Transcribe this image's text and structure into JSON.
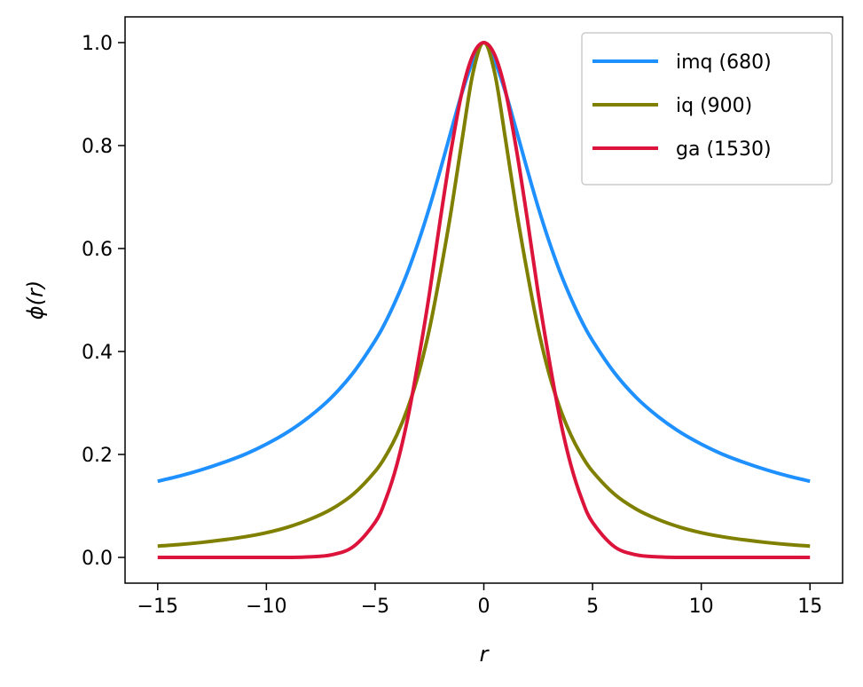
{
  "chart_data": {
    "type": "line",
    "xlabel": "r",
    "ylabel": "ϕ(r)",
    "xlim": [
      -16.5,
      16.5
    ],
    "ylim": [
      -0.05,
      1.05
    ],
    "xticks": [
      -15,
      -10,
      -5,
      0,
      5,
      10,
      15
    ],
    "xtick_labels": [
      "−15",
      "−10",
      "−5",
      "0",
      "5",
      "10",
      "15"
    ],
    "yticks": [
      0.0,
      0.2,
      0.4,
      0.6,
      0.8,
      1.0
    ],
    "ytick_labels": [
      "0.0",
      "0.2",
      "0.4",
      "0.6",
      "0.8",
      "1.0"
    ],
    "legend_position": "top-right",
    "x_samples": [
      -15,
      -14,
      -13,
      -12,
      -11,
      -10,
      -9,
      -8,
      -7,
      -6,
      -5,
      -4.5,
      -4,
      -3.5,
      -3,
      -2.5,
      -2,
      -1.5,
      -1,
      -0.5,
      0,
      0.5,
      1,
      1.5,
      2,
      2.5,
      3,
      3.5,
      4,
      4.5,
      5,
      6,
      7,
      8,
      9,
      10,
      11,
      12,
      13,
      14,
      15
    ],
    "series": [
      {
        "name": "imq (680)",
        "color": "#1e90ff",
        "values": [
          0.148,
          0.158,
          0.17,
          0.184,
          0.2,
          0.22,
          0.244,
          0.274,
          0.311,
          0.359,
          0.421,
          0.459,
          0.504,
          0.555,
          0.614,
          0.68,
          0.753,
          0.829,
          0.903,
          0.964,
          1.0,
          0.964,
          0.903,
          0.829,
          0.753,
          0.68,
          0.614,
          0.555,
          0.504,
          0.459,
          0.421,
          0.359,
          0.311,
          0.274,
          0.244,
          0.22,
          0.2,
          0.184,
          0.17,
          0.158,
          0.148
        ]
      },
      {
        "name": "iq (900)",
        "color": "#808000",
        "values": [
          0.022,
          0.025,
          0.029,
          0.034,
          0.04,
          0.048,
          0.059,
          0.074,
          0.094,
          0.123,
          0.167,
          0.198,
          0.238,
          0.29,
          0.357,
          0.444,
          0.553,
          0.674,
          0.811,
          0.941,
          1.0,
          0.941,
          0.811,
          0.674,
          0.553,
          0.444,
          0.357,
          0.29,
          0.238,
          0.198,
          0.167,
          0.123,
          0.094,
          0.074,
          0.059,
          0.048,
          0.04,
          0.034,
          0.029,
          0.025,
          0.022
        ]
      },
      {
        "name": "ga (1530)",
        "color": "#dc143c",
        "values": [
          0.0,
          0.0,
          0.0,
          0.0,
          0.0,
          0.0,
          0.0,
          0.001,
          0.005,
          0.021,
          0.068,
          0.114,
          0.18,
          0.27,
          0.385,
          0.513,
          0.657,
          0.792,
          0.905,
          0.976,
          1.0,
          0.976,
          0.905,
          0.792,
          0.657,
          0.513,
          0.385,
          0.27,
          0.18,
          0.114,
          0.068,
          0.021,
          0.005,
          0.001,
          0.0,
          0.0,
          0.0,
          0.0,
          0.0,
          0.0,
          0.0
        ]
      }
    ]
  }
}
